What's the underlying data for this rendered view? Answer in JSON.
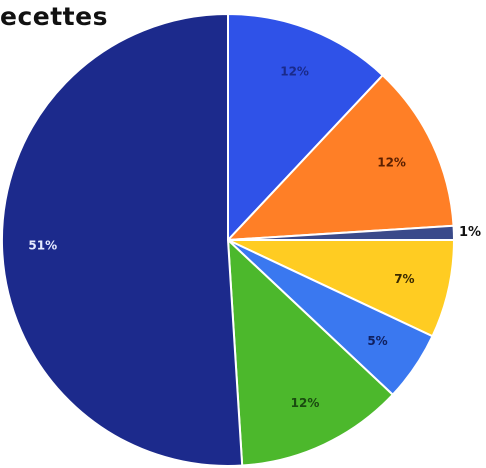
{
  "chart_data": {
    "type": "pie",
    "title": "ecettes",
    "start_angle_deg": 0,
    "direction": "clockwise",
    "slices": [
      {
        "label": "12%",
        "value": 12,
        "color": "#2f52e8",
        "label_color": "#1a2a8a"
      },
      {
        "label": "12%",
        "value": 12,
        "color": "#ff7f26",
        "label_color": "#5a1f00"
      },
      {
        "label": "1%",
        "value": 1,
        "color": "#3a4a8a",
        "label_color": "#111111"
      },
      {
        "label": "7%",
        "value": 7,
        "color": "#ffcc22",
        "label_color": "#3a2a00"
      },
      {
        "label": "5%",
        "value": 5,
        "color": "#3a78f0",
        "label_color": "#102060"
      },
      {
        "label": "12%",
        "value": 12,
        "color": "#4cb82c",
        "label_color": "#1a4a10"
      },
      {
        "label": "51%",
        "value": 51,
        "color": "#1c2a8c",
        "label_color": "#e8ecff"
      }
    ]
  }
}
